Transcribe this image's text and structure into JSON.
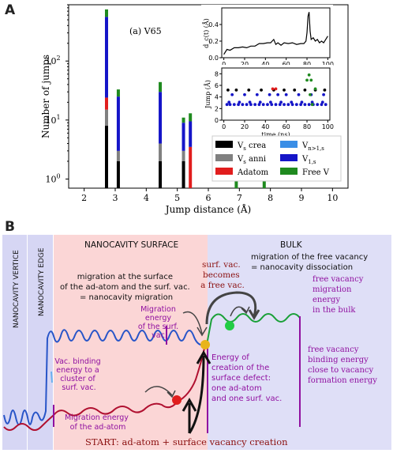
{
  "panel_a": {
    "letter": "A",
    "annotation": "(a) V65"
  },
  "panel_b": {
    "letter": "B",
    "regions": {
      "vertice": "NANOCAVITY VERTICE",
      "edge": "NANOCAVITY EDGE",
      "surface": "NANOCAVITY SURFACE",
      "bulk": "BULK"
    },
    "texts": {
      "surf_migration_1": "migration at the surface",
      "surf_migration_2": "of the ad-atom and the surf. vac.",
      "surf_migration_3": "= nanocavity migration",
      "migr_energy_surfvac_1": "Migration",
      "migr_energy_surfvac_2": "energy",
      "migr_energy_surfvac_3": "of the surf.",
      "migr_energy_surfvac_4": "vac.",
      "vac_binding_1": "Vac. binding",
      "vac_binding_2": "energy to a",
      "vac_binding_3": "cluster of",
      "vac_binding_4": "surf. vac.",
      "migr_adatom_1": "Migration energy",
      "migr_adatom_2": "of the ad-atom",
      "surf_vac_becomes_1": "surf. vac.",
      "surf_vac_becomes_2": "becomes",
      "surf_vac_becomes_3": "a free vac.",
      "free_migration_1": "migration of the free vacancy",
      "free_migration_2": "= nanocavity dissociation",
      "free_vac_migration_1": "free vacancy",
      "free_vac_migration_2": "migration",
      "free_vac_migration_3": "energy",
      "free_vac_migration_4": "in the bulk",
      "creation_1": "Energy of",
      "creation_2": "creation of the",
      "creation_3": "surface defect:",
      "creation_4": "one ad-atom",
      "creation_5": "and one surf. vac.",
      "free_binding_1": "free vacancy",
      "free_binding_2": "binding energy",
      "free_binding_3": "close to vacancy",
      "free_binding_4": "formation energy",
      "start": "START: ad-atom + surface vacancy   creation"
    },
    "colors": {
      "vertice_bg": "#d6d6f4",
      "surface_bg": "#fbd6d6",
      "bulk_bg": "#dfdff7",
      "blue_curve": "#2855c8",
      "red_curve": "#b01030",
      "green_curve": "#1aa038",
      "purple_text": "#9010a0",
      "dark_red_text": "#8b1010"
    }
  },
  "chart_data": [
    {
      "type": "bar",
      "title": "",
      "xlabel": "Jump distance (Å)",
      "ylabel": "Number of jumps",
      "xlim": [
        1.5,
        10.5
      ],
      "ylim": [
        0.7,
        900
      ],
      "yscale": "log",
      "x_ticks": [
        2,
        3,
        4,
        5,
        6,
        7,
        8,
        9,
        10
      ],
      "y_ticks": [
        {
          "value": 1,
          "label": "10",
          "exp": "0"
        },
        {
          "value": 10,
          "label": "10",
          "exp": "1"
        },
        {
          "value": 100,
          "label": "10",
          "exp": "2"
        }
      ],
      "legend_placement": "lower-right",
      "legend": [
        {
          "label": "V",
          "sub": "s",
          "rest": " crea",
          "color": "#000000"
        },
        {
          "label": "V",
          "sub": "s",
          "rest": " anni",
          "color": "#808080"
        },
        {
          "label": "Adatom",
          "sub": "",
          "rest": "",
          "color": "#e11d1d"
        },
        {
          "label": "V",
          "sub": "n>1,s",
          "rest": "",
          "color": "#3a8ee6"
        },
        {
          "label": "V",
          "sub": "1,s",
          "rest": "",
          "color": "#1515c8"
        },
        {
          "label": "Free V",
          "sub": "",
          "rest": "",
          "color": "#1f8a1f"
        }
      ],
      "stacks": [
        {
          "x": 2.72,
          "segments": [
            {
              "series": "Vs crea",
              "to": 8
            },
            {
              "series": "Vs anni",
              "to": 15
            },
            {
              "series": "Adatom",
              "to": 24
            },
            {
              "series": "V1,s",
              "to": 560
            },
            {
              "series": "Free V",
              "to": 750
            }
          ]
        },
        {
          "x": 3.1,
          "segments": [
            {
              "series": "Vs crea",
              "to": 2
            },
            {
              "series": "Vs anni",
              "to": 3
            },
            {
              "series": "V1,s",
              "to": 25
            },
            {
              "series": "Free V",
              "to": 33
            }
          ]
        },
        {
          "x": 4.45,
          "segments": [
            {
              "series": "Vs crea",
              "to": 2
            },
            {
              "series": "Vs anni",
              "to": 4
            },
            {
              "series": "V1,s",
              "to": 30
            },
            {
              "series": "Free V",
              "to": 44
            }
          ]
        },
        {
          "x": 5.2,
          "segments": [
            {
              "series": "Vs crea",
              "to": 2
            },
            {
              "series": "Vs anni",
              "to": 3
            },
            {
              "series": "V1,s",
              "to": 9
            },
            {
              "series": "Free V",
              "to": 11
            }
          ]
        },
        {
          "x": 5.42,
          "segments": [
            {
              "series": "Adatom",
              "to": 3.5
            },
            {
              "series": "V1,s",
              "to": 9.5
            },
            {
              "series": "Free V",
              "to": 13
            }
          ]
        },
        {
          "x": 6.9,
          "segments": [
            {
              "series": "Free V",
              "to": 1
            }
          ]
        },
        {
          "x": 7.8,
          "segments": [
            {
              "series": "Free V",
              "to": 1
            }
          ]
        }
      ]
    },
    {
      "type": "line",
      "title": "",
      "xlabel": "",
      "ylabel": "d_c(t) (Å)",
      "xlim": [
        -2,
        102
      ],
      "ylim": [
        0,
        0.6
      ],
      "x_ticks": [
        0,
        20,
        40,
        60,
        80,
        100
      ],
      "y_ticks": [
        0.0,
        0.2,
        0.4
      ],
      "series": [
        {
          "color": "#000000",
          "x": [
            0,
            3,
            6,
            10,
            14,
            18,
            22,
            26,
            30,
            34,
            38,
            42,
            45,
            48,
            50,
            52,
            55,
            58,
            62,
            66,
            70,
            74,
            77,
            79,
            80,
            81,
            82,
            83,
            84,
            86,
            88,
            90,
            92,
            94,
            96,
            98,
            100
          ],
          "y": [
            0.04,
            0.1,
            0.09,
            0.12,
            0.12,
            0.13,
            0.12,
            0.14,
            0.14,
            0.17,
            0.17,
            0.18,
            0.18,
            0.22,
            0.16,
            0.18,
            0.15,
            0.18,
            0.17,
            0.18,
            0.16,
            0.17,
            0.17,
            0.2,
            0.3,
            0.5,
            0.55,
            0.32,
            0.22,
            0.24,
            0.2,
            0.22,
            0.18,
            0.2,
            0.18,
            0.22,
            0.26
          ]
        }
      ]
    },
    {
      "type": "scatter",
      "title": "",
      "xlabel": "time (ns)",
      "ylabel": "Jump (Å)",
      "xlim": [
        -2,
        102
      ],
      "ylim": [
        0,
        9
      ],
      "x_ticks": [
        0,
        20,
        40,
        60,
        80,
        100
      ],
      "y_ticks": [
        0,
        2,
        4,
        6,
        8
      ],
      "series": [
        {
          "name": "V1,s",
          "color": "#1515c8",
          "x": [
            3,
            6,
            10,
            14,
            18,
            22,
            26,
            30,
            34,
            38,
            42,
            46,
            50,
            54,
            58,
            62,
            66,
            70,
            74,
            78,
            82,
            86,
            90,
            94,
            98,
            5,
            15,
            25,
            35,
            45,
            55,
            65,
            75,
            85,
            95,
            8,
            20,
            32,
            44,
            52,
            60,
            72,
            84,
            96
          ],
          "y": [
            2.7,
            2.7,
            2.7,
            2.7,
            2.7,
            2.7,
            2.7,
            2.7,
            2.7,
            2.7,
            2.7,
            2.7,
            2.7,
            2.7,
            2.7,
            2.7,
            2.7,
            2.7,
            2.7,
            2.7,
            2.7,
            2.7,
            2.7,
            2.7,
            2.7,
            3.1,
            3.1,
            3.1,
            3.1,
            3.1,
            3.1,
            3.1,
            3.1,
            3.1,
            3.1,
            4.4,
            4.4,
            4.4,
            4.4,
            4.4,
            4.4,
            4.4,
            4.4,
            4.4
          ]
        },
        {
          "name": "Vs crea",
          "color": "#000000",
          "x": [
            4,
            12,
            24,
            36,
            48,
            58,
            68,
            78,
            88,
            97
          ],
          "y": [
            5.2,
            5.2,
            5.2,
            5.2,
            5.2,
            5.2,
            5.2,
            5.2,
            5.2,
            5.2
          ]
        },
        {
          "name": "Adatom",
          "color": "#e11d1d",
          "x": [
            47,
            50
          ],
          "y": [
            5.4,
            5.4
          ]
        },
        {
          "name": "Free V",
          "color": "#1f8a1f",
          "x": [
            80,
            82,
            84,
            85,
            83,
            88
          ],
          "y": [
            6.9,
            7.8,
            6.9,
            2.7,
            4.4,
            5.4
          ]
        }
      ]
    }
  ]
}
